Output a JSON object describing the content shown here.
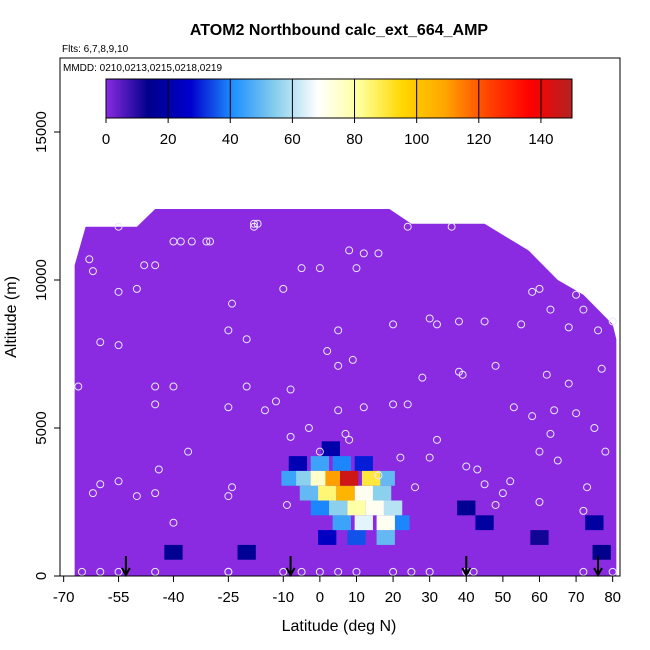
{
  "chart_data": {
    "type": "heatmap",
    "title": "ATOM2 Northbound calc_ext_664_AMP",
    "subtitle_flights": "Flts: 6,7,8,9,10",
    "subtitle_dates": "MMDD: 0210,0213,0215,0218,0219",
    "xlabel": "Latitude (deg N)",
    "ylabel": "Altitude (m)",
    "xlim": [
      -71,
      82
    ],
    "ylim": [
      0,
      17500
    ],
    "x_ticks": [
      -70,
      -55,
      -40,
      -25,
      -10,
      0,
      10,
      20,
      30,
      40,
      50,
      60,
      70,
      80
    ],
    "y_ticks": [
      0,
      5000,
      10000,
      15000
    ],
    "colorbar": {
      "ticks": [
        0,
        20,
        40,
        60,
        80,
        100,
        120,
        140
      ],
      "range": [
        0,
        150
      ],
      "colors": [
        "#8a2be2",
        "#00008b",
        "#0000cd",
        "#1e90ff",
        "#87ceeb",
        "#ffffff",
        "#ffff99",
        "#ffd700",
        "#ffa500",
        "#ff4500",
        "#ff0000",
        "#b22222"
      ]
    },
    "coverage_top_m": [
      [
        -67,
        10500
      ],
      [
        -64,
        11800
      ],
      [
        -50,
        11800
      ],
      [
        -45,
        12400
      ],
      [
        -40,
        12400
      ],
      [
        -20,
        12400
      ],
      [
        -10,
        12400
      ],
      [
        0,
        12400
      ],
      [
        10,
        12400
      ],
      [
        19,
        12400
      ],
      [
        25,
        11900
      ],
      [
        45,
        11900
      ],
      [
        57,
        11000
      ],
      [
        65,
        10000
      ],
      [
        72,
        9500
      ],
      [
        80,
        8500
      ],
      [
        81,
        8000
      ]
    ],
    "enhanced_cells": [
      {
        "lat": 8,
        "alt": 3300,
        "value": 145
      },
      {
        "lat": 4,
        "alt": 3300,
        "value": 110
      },
      {
        "lat": 14,
        "alt": 3300,
        "value": 90
      },
      {
        "lat": 0,
        "alt": 3300,
        "value": 75
      },
      {
        "lat": -4,
        "alt": 3300,
        "value": 55
      },
      {
        "lat": -8,
        "alt": 3300,
        "value": 45
      },
      {
        "lat": 18,
        "alt": 3300,
        "value": 50
      },
      {
        "lat": 7,
        "alt": 2800,
        "value": 105
      },
      {
        "lat": 2,
        "alt": 2800,
        "value": 85
      },
      {
        "lat": 12,
        "alt": 2800,
        "value": 70
      },
      {
        "lat": -3,
        "alt": 2800,
        "value": 50
      },
      {
        "lat": 17,
        "alt": 2800,
        "value": 55
      },
      {
        "lat": 10,
        "alt": 2300,
        "value": 80
      },
      {
        "lat": 15,
        "alt": 2300,
        "value": 70
      },
      {
        "lat": 5,
        "alt": 2300,
        "value": 55
      },
      {
        "lat": 20,
        "alt": 2300,
        "value": 60
      },
      {
        "lat": 0,
        "alt": 2300,
        "value": 40
      },
      {
        "lat": 12,
        "alt": 1800,
        "value": 65
      },
      {
        "lat": 18,
        "alt": 1800,
        "value": 70
      },
      {
        "lat": 6,
        "alt": 1800,
        "value": 45
      },
      {
        "lat": 22,
        "alt": 1800,
        "value": 40
      },
      {
        "lat": 10,
        "alt": 1300,
        "value": 35
      },
      {
        "lat": 18,
        "alt": 1300,
        "value": 50
      },
      {
        "lat": 2,
        "alt": 1300,
        "value": 25
      },
      {
        "lat": 0,
        "alt": 3800,
        "value": 45
      },
      {
        "lat": 6,
        "alt": 3800,
        "value": 40
      },
      {
        "lat": 12,
        "alt": 3800,
        "value": 30
      },
      {
        "lat": -6,
        "alt": 3800,
        "value": 22
      },
      {
        "lat": 3,
        "alt": 4300,
        "value": 20
      },
      {
        "lat": 40,
        "alt": 2300,
        "value": 15
      },
      {
        "lat": 45,
        "alt": 1800,
        "value": 18
      },
      {
        "lat": 60,
        "alt": 1300,
        "value": 12
      },
      {
        "lat": 75,
        "alt": 1800,
        "value": 18
      },
      {
        "lat": 77,
        "alt": 800,
        "value": 14
      },
      {
        "lat": -40,
        "alt": 800,
        "value": 15
      },
      {
        "lat": -20,
        "alt": 800,
        "value": 16
      }
    ],
    "sample_points": [
      [
        -65,
        5
      ],
      [
        -60,
        5
      ],
      [
        -55,
        5
      ],
      [
        -45,
        5
      ],
      [
        -25,
        5
      ],
      [
        -25,
        8
      ],
      [
        -10,
        5
      ],
      [
        -5,
        5
      ],
      [
        0,
        5
      ],
      [
        5,
        5
      ],
      [
        10,
        5
      ],
      [
        20,
        5
      ],
      [
        25,
        5
      ],
      [
        30,
        5
      ],
      [
        40,
        5
      ],
      [
        42,
        5
      ],
      [
        72,
        5
      ],
      [
        80,
        5
      ],
      [
        -55,
        3200
      ],
      [
        -60,
        3100
      ],
      [
        -62,
        2800
      ],
      [
        -50,
        2700
      ],
      [
        -45,
        2800
      ],
      [
        -44,
        3600
      ],
      [
        -40,
        1800
      ],
      [
        -25,
        2700
      ],
      [
        -24,
        3000
      ],
      [
        -36,
        4200
      ],
      [
        -45,
        5800
      ],
      [
        -45,
        6400
      ],
      [
        -40,
        6400
      ],
      [
        -25,
        5700
      ],
      [
        -20,
        6400
      ],
      [
        -15,
        5600
      ],
      [
        -12,
        5900
      ],
      [
        -8,
        4700
      ],
      [
        0,
        4200
      ],
      [
        5,
        5600
      ],
      [
        7,
        4800
      ],
      [
        8,
        4600
      ],
      [
        12,
        5700
      ],
      [
        16,
        3400
      ],
      [
        20,
        5800
      ],
      [
        22,
        4000
      ],
      [
        24,
        5800
      ],
      [
        26,
        3000
      ],
      [
        28,
        6700
      ],
      [
        30,
        4000
      ],
      [
        32,
        4600
      ],
      [
        38,
        6900
      ],
      [
        40,
        3700
      ],
      [
        39,
        6800
      ],
      [
        43,
        3600
      ],
      [
        45,
        3100
      ],
      [
        48,
        7100
      ],
      [
        48,
        2400
      ],
      [
        50,
        2800
      ],
      [
        52,
        3200
      ],
      [
        53,
        5700
      ],
      [
        58,
        5400
      ],
      [
        60,
        2500
      ],
      [
        60,
        4200
      ],
      [
        62,
        6800
      ],
      [
        63,
        4800
      ],
      [
        64,
        5600
      ],
      [
        65,
        3900
      ],
      [
        68,
        6500
      ],
      [
        70,
        5500
      ],
      [
        72,
        2200
      ],
      [
        73,
        3000
      ],
      [
        75,
        5000
      ],
      [
        77,
        7000
      ],
      [
        78,
        4200
      ],
      [
        -9,
        2400
      ],
      [
        -66,
        6400
      ],
      [
        -60,
        7900
      ],
      [
        -55,
        7800
      ],
      [
        -62,
        10300
      ],
      [
        -63,
        10700
      ],
      [
        -55,
        9600
      ],
      [
        -50,
        9700
      ],
      [
        -48,
        10500
      ],
      [
        -45,
        10500
      ],
      [
        -40,
        11300
      ],
      [
        -38,
        11300
      ],
      [
        -35,
        11300
      ],
      [
        -31,
        11300
      ],
      [
        -30,
        11300
      ],
      [
        -25,
        8300
      ],
      [
        -24,
        9200
      ],
      [
        -20,
        8000
      ],
      [
        -18,
        11900
      ],
      [
        -17,
        11900
      ],
      [
        -10,
        9700
      ],
      [
        -8,
        6300
      ],
      [
        -5,
        10400
      ],
      [
        0,
        10400
      ],
      [
        2,
        7600
      ],
      [
        5,
        7100
      ],
      [
        8,
        11000
      ],
      [
        10,
        10400
      ],
      [
        12,
        10900
      ],
      [
        16,
        10900
      ],
      [
        20,
        8500
      ],
      [
        24,
        11800
      ],
      [
        30,
        8700
      ],
      [
        32,
        8500
      ],
      [
        36,
        11800
      ],
      [
        38,
        8600
      ],
      [
        45,
        8600
      ],
      [
        55,
        8500
      ],
      [
        60,
        9700
      ],
      [
        63,
        9000
      ],
      [
        68,
        8400
      ],
      [
        72,
        9000
      ],
      [
        76,
        8300
      ],
      [
        80,
        8600
      ],
      [
        -55,
        11800
      ],
      [
        -18,
        11800
      ],
      [
        5,
        8300
      ],
      [
        9,
        7300
      ],
      [
        -3,
        5000
      ],
      [
        58,
        9600
      ],
      [
        70,
        9500
      ]
    ],
    "arrow_latitudes": [
      -53,
      -8,
      40,
      76
    ]
  }
}
